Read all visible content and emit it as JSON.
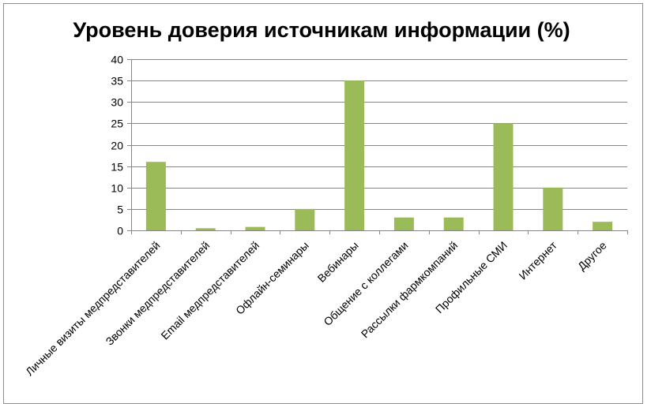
{
  "chart_data": {
    "type": "bar",
    "title": "Уровень доверия источникам информации (%)",
    "categories": [
      "Личные визиты медпредставителей",
      "Звонки медпредставителей",
      "Email медпредставителей",
      "Офлайн-семинары",
      "Вебинары",
      "Общение с коллегами",
      "Рассылки фармкомпаний",
      "Профильные СМИ",
      "Интернет",
      "Другое"
    ],
    "values": [
      16,
      0.5,
      0.8,
      5,
      35,
      3,
      3,
      25,
      10,
      2
    ],
    "ylim": [
      0,
      40
    ],
    "yticks": [
      0,
      5,
      10,
      15,
      20,
      25,
      30,
      35,
      40
    ],
    "grid": true,
    "bar_color": "#9bbb59",
    "gridline_color": "#868686"
  }
}
